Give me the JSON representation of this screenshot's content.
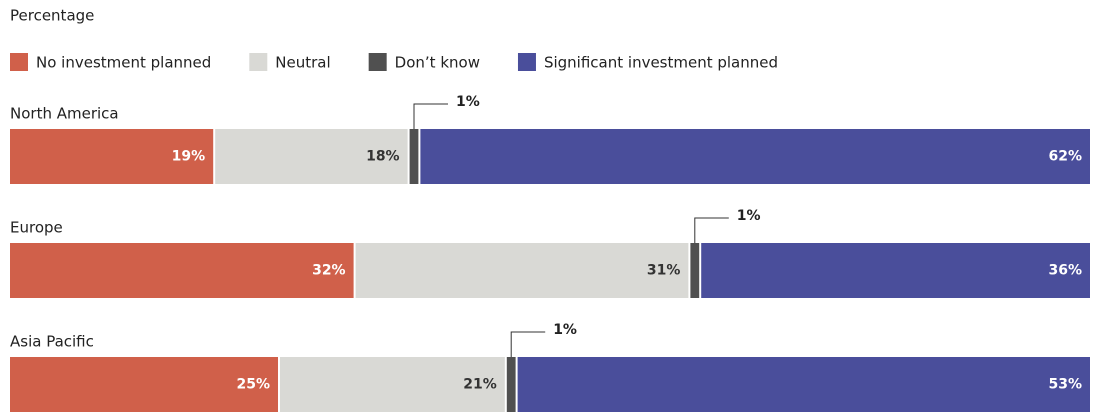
{
  "chart_data": {
    "type": "bar",
    "orientation": "horizontal",
    "stacked": true,
    "subtitle": "Percentage",
    "categories": [
      "North America",
      "Europe",
      "Asia Pacific"
    ],
    "series": [
      {
        "name": "No investment planned",
        "color": "#d0604a",
        "values": [
          19,
          32,
          25
        ],
        "value_labels": [
          "19%",
          "32%",
          "25%"
        ]
      },
      {
        "name": "Neutral",
        "color": "#d9d9d5",
        "values": [
          18,
          31,
          21
        ],
        "value_labels": [
          "18%",
          "31%",
          "21%"
        ]
      },
      {
        "name": "Don’t know",
        "color": "#505050",
        "values": [
          1,
          1,
          1
        ],
        "value_labels": [
          "1%",
          "1%",
          "1%"
        ]
      },
      {
        "name": "Significant investment planned",
        "color": "#4a4e9b",
        "values": [
          62,
          36,
          53
        ],
        "value_labels": [
          "62%",
          "36%",
          "53%"
        ]
      }
    ],
    "legend": "top-left"
  }
}
